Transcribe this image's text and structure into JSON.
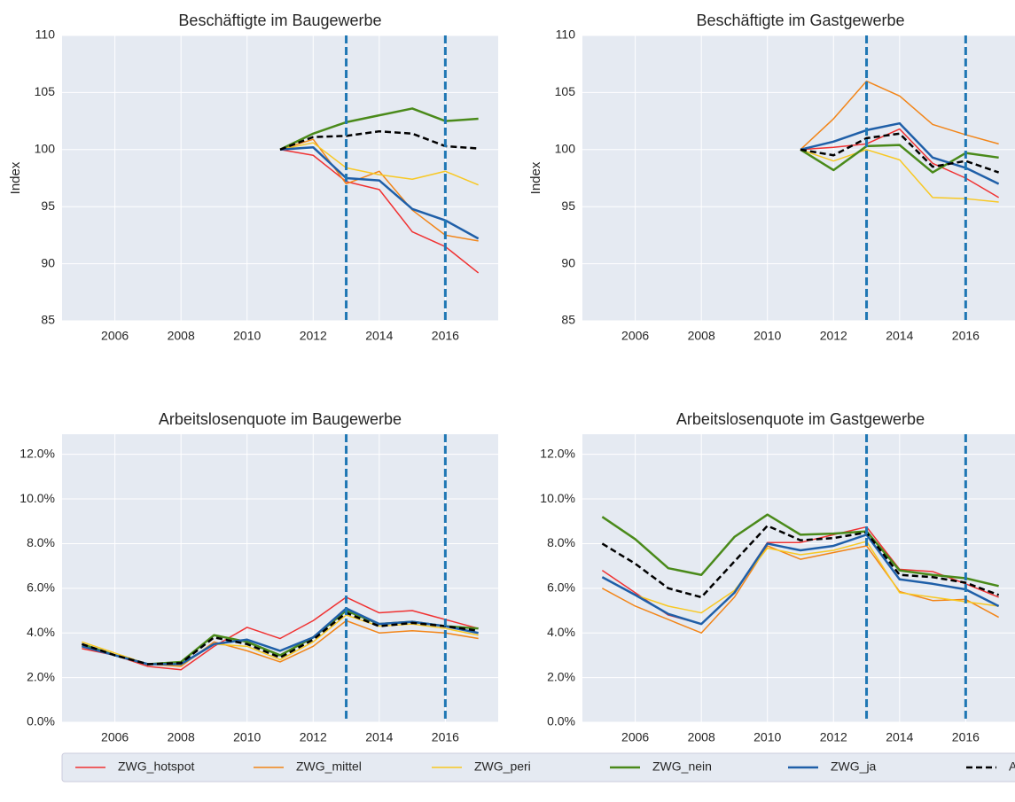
{
  "chart_data": [
    {
      "type": "line",
      "title": "Beschäftigte im Baugewerbe",
      "ylabel": "Index",
      "x": [
        2005,
        2006,
        2007,
        2008,
        2009,
        2010,
        2011,
        2012,
        2013,
        2014,
        2015,
        2016,
        2017
      ],
      "xlim": [
        2004.4,
        2017.6
      ],
      "xticks": [
        2006,
        2008,
        2010,
        2012,
        2014,
        2016
      ],
      "ylim": [
        85,
        110
      ],
      "yticks": [
        85,
        90,
        95,
        100,
        105,
        110
      ],
      "grid": true,
      "vlines": [
        2013,
        2016
      ],
      "vline_color": "#1f77b4",
      "series": [
        {
          "name": "ZWG_hotspot",
          "color": "#f03232",
          "width": 1.5,
          "values": [
            null,
            null,
            null,
            null,
            null,
            null,
            100,
            99.5,
            97.2,
            96.5,
            92.8,
            91.5,
            89.2
          ]
        },
        {
          "name": "ZWG_mittel",
          "color": "#f28518",
          "width": 1.5,
          "values": [
            null,
            null,
            null,
            null,
            null,
            null,
            100,
            100.9,
            97.0,
            98.1,
            94.7,
            92.5,
            92.0
          ]
        },
        {
          "name": "ZWG_peri",
          "color": "#f8c823",
          "width": 1.5,
          "values": [
            null,
            null,
            null,
            null,
            null,
            null,
            100,
            100.6,
            98.4,
            97.8,
            97.4,
            98.1,
            96.9
          ]
        },
        {
          "name": "ZWG_nein",
          "color": "#4a8a1a",
          "width": 2.5,
          "values": [
            null,
            null,
            null,
            null,
            null,
            null,
            100,
            101.4,
            102.4,
            103.0,
            103.6,
            102.5,
            102.7
          ]
        },
        {
          "name": "ZWG_ja",
          "color": "#1f5fa8",
          "width": 2.5,
          "values": [
            null,
            null,
            null,
            null,
            null,
            null,
            100,
            100.2,
            97.5,
            97.3,
            94.8,
            93.8,
            92.2
          ]
        },
        {
          "name": "Alle",
          "color": "#000000",
          "width": 2.5,
          "dash": true,
          "values": [
            null,
            null,
            null,
            null,
            null,
            null,
            100,
            101.1,
            101.2,
            101.6,
            101.4,
            100.3,
            100.1
          ]
        }
      ]
    },
    {
      "type": "line",
      "title": "Beschäftigte im Gastgewerbe",
      "ylabel": "Index",
      "x": [
        2005,
        2006,
        2007,
        2008,
        2009,
        2010,
        2011,
        2012,
        2013,
        2014,
        2015,
        2016,
        2017
      ],
      "xlim": [
        2004.4,
        2017.6
      ],
      "xticks": [
        2006,
        2008,
        2010,
        2012,
        2014,
        2016
      ],
      "ylim": [
        85,
        110
      ],
      "yticks": [
        85,
        90,
        95,
        100,
        105,
        110
      ],
      "grid": true,
      "vlines": [
        2013,
        2016
      ],
      "vline_color": "#1f77b4",
      "series": [
        {
          "name": "ZWG_hotspot",
          "color": "#f03232",
          "width": 1.5,
          "values": [
            null,
            null,
            null,
            null,
            null,
            null,
            100,
            100.2,
            100.5,
            101.8,
            98.8,
            97.5,
            95.8
          ]
        },
        {
          "name": "ZWG_mittel",
          "color": "#f28518",
          "width": 1.5,
          "values": [
            null,
            null,
            null,
            null,
            null,
            null,
            100,
            102.7,
            106.0,
            104.7,
            102.2,
            101.3,
            100.5
          ]
        },
        {
          "name": "ZWG_peri",
          "color": "#f8c823",
          "width": 1.5,
          "values": [
            null,
            null,
            null,
            null,
            null,
            null,
            100,
            99.0,
            100.0,
            99.1,
            95.8,
            95.7,
            95.4
          ]
        },
        {
          "name": "ZWG_nein",
          "color": "#4a8a1a",
          "width": 2.5,
          "values": [
            null,
            null,
            null,
            null,
            null,
            null,
            100,
            98.2,
            100.3,
            100.4,
            98.0,
            99.7,
            99.3
          ]
        },
        {
          "name": "ZWG_ja",
          "color": "#1f5fa8",
          "width": 2.5,
          "values": [
            null,
            null,
            null,
            null,
            null,
            null,
            100,
            100.7,
            101.7,
            102.3,
            99.3,
            98.4,
            97.0
          ]
        },
        {
          "name": "Alle",
          "color": "#000000",
          "width": 2.5,
          "dash": true,
          "values": [
            null,
            null,
            null,
            null,
            null,
            null,
            100,
            99.5,
            101.0,
            101.4,
            98.5,
            99.0,
            98.0
          ]
        }
      ]
    },
    {
      "type": "line",
      "title": "Arbeitslosenquote im Baugewerbe",
      "x": [
        2005,
        2006,
        2007,
        2008,
        2009,
        2010,
        2011,
        2012,
        2013,
        2014,
        2015,
        2016,
        2017
      ],
      "xlim": [
        2004.4,
        2017.6
      ],
      "xticks": [
        2006,
        2008,
        2010,
        2012,
        2014,
        2016
      ],
      "ylim": [
        0,
        12.9
      ],
      "yticks": [
        {
          "value": 0,
          "label": "0.0%"
        },
        {
          "value": 2,
          "label": "2.0%"
        },
        {
          "value": 4,
          "label": "4.0%"
        },
        {
          "value": 6,
          "label": "6.0%"
        },
        {
          "value": 8,
          "label": "8.0%"
        },
        {
          "value": 10,
          "label": "10.0%"
        },
        {
          "value": 12,
          "label": "12.0%"
        }
      ],
      "grid": true,
      "vlines": [
        2013,
        2016
      ],
      "vline_color": "#1f77b4",
      "series": [
        {
          "name": "ZWG_hotspot",
          "color": "#f03232",
          "width": 1.5,
          "values": [
            3.3,
            3.0,
            2.5,
            2.35,
            3.4,
            4.25,
            3.75,
            4.55,
            5.6,
            4.9,
            5.0,
            4.6,
            4.2
          ]
        },
        {
          "name": "ZWG_mittel",
          "color": "#f28518",
          "width": 1.5,
          "values": [
            3.4,
            3.0,
            2.6,
            2.5,
            3.6,
            3.2,
            2.7,
            3.4,
            4.55,
            4.0,
            4.1,
            4.0,
            3.75
          ]
        },
        {
          "name": "ZWG_peri",
          "color": "#f8c823",
          "width": 1.5,
          "values": [
            3.6,
            3.1,
            2.6,
            2.55,
            3.5,
            3.4,
            2.8,
            3.6,
            4.8,
            4.3,
            4.4,
            4.2,
            3.9
          ]
        },
        {
          "name": "ZWG_nein",
          "color": "#4a8a1a",
          "width": 2.5,
          "values": [
            3.5,
            3.0,
            2.6,
            2.7,
            3.9,
            3.6,
            3.0,
            3.8,
            5.0,
            4.4,
            4.5,
            4.3,
            4.2
          ]
        },
        {
          "name": "ZWG_ja",
          "color": "#1f5fa8",
          "width": 2.5,
          "values": [
            3.4,
            3.0,
            2.6,
            2.6,
            3.5,
            3.7,
            3.2,
            3.8,
            5.1,
            4.4,
            4.5,
            4.3,
            4.0
          ]
        },
        {
          "name": "Alle",
          "color": "#000000",
          "width": 2.5,
          "dash": true,
          "values": [
            3.5,
            3.0,
            2.6,
            2.65,
            3.8,
            3.5,
            2.9,
            3.7,
            4.9,
            4.3,
            4.45,
            4.3,
            4.1
          ]
        }
      ]
    },
    {
      "type": "line",
      "title": "Arbeitslosenquote im Gastgewerbe",
      "x": [
        2005,
        2006,
        2007,
        2008,
        2009,
        2010,
        2011,
        2012,
        2013,
        2014,
        2015,
        2016,
        2017
      ],
      "xlim": [
        2004.4,
        2017.6
      ],
      "xticks": [
        2006,
        2008,
        2010,
        2012,
        2014,
        2016
      ],
      "ylim": [
        0,
        12.9
      ],
      "yticks": [
        {
          "value": 0,
          "label": "0.0%"
        },
        {
          "value": 2,
          "label": "2.0%"
        },
        {
          "value": 4,
          "label": "4.0%"
        },
        {
          "value": 6,
          "label": "6.0%"
        },
        {
          "value": 8,
          "label": "8.0%"
        },
        {
          "value": 10,
          "label": "10.0%"
        },
        {
          "value": 12,
          "label": "12.0%"
        }
      ],
      "grid": true,
      "vlines": [
        2013,
        2016
      ],
      "vline_color": "#1f77b4",
      "series": [
        {
          "name": "ZWG_hotspot",
          "color": "#f03232",
          "width": 1.5,
          "values": [
            6.8,
            5.8,
            4.8,
            4.4,
            5.8,
            8.05,
            8.05,
            8.4,
            8.75,
            6.85,
            6.75,
            6.2,
            5.6
          ]
        },
        {
          "name": "ZWG_mittel",
          "color": "#f28518",
          "width": 1.5,
          "values": [
            6.0,
            5.2,
            4.6,
            4.0,
            5.6,
            7.9,
            7.3,
            7.6,
            7.9,
            5.85,
            5.45,
            5.5,
            4.7
          ]
        },
        {
          "name": "ZWG_peri",
          "color": "#f8c823",
          "width": 1.5,
          "values": [
            6.5,
            5.7,
            5.2,
            4.9,
            5.9,
            7.8,
            7.5,
            7.7,
            8.1,
            5.8,
            5.6,
            5.4,
            5.2
          ]
        },
        {
          "name": "ZWG_nein",
          "color": "#4a8a1a",
          "width": 2.5,
          "values": [
            9.2,
            8.2,
            6.9,
            6.6,
            8.3,
            9.3,
            8.4,
            8.45,
            8.55,
            6.8,
            6.6,
            6.45,
            6.1
          ]
        },
        {
          "name": "ZWG_ja",
          "color": "#1f5fa8",
          "width": 2.5,
          "values": [
            6.5,
            5.7,
            4.85,
            4.4,
            5.8,
            8.0,
            7.7,
            7.9,
            8.4,
            6.4,
            6.2,
            5.95,
            5.2
          ]
        },
        {
          "name": "Alle",
          "color": "#000000",
          "width": 2.5,
          "dash": true,
          "values": [
            8.0,
            7.1,
            6.0,
            5.6,
            7.2,
            8.8,
            8.15,
            8.25,
            8.5,
            6.6,
            6.5,
            6.25,
            5.7
          ]
        }
      ]
    }
  ]
}
